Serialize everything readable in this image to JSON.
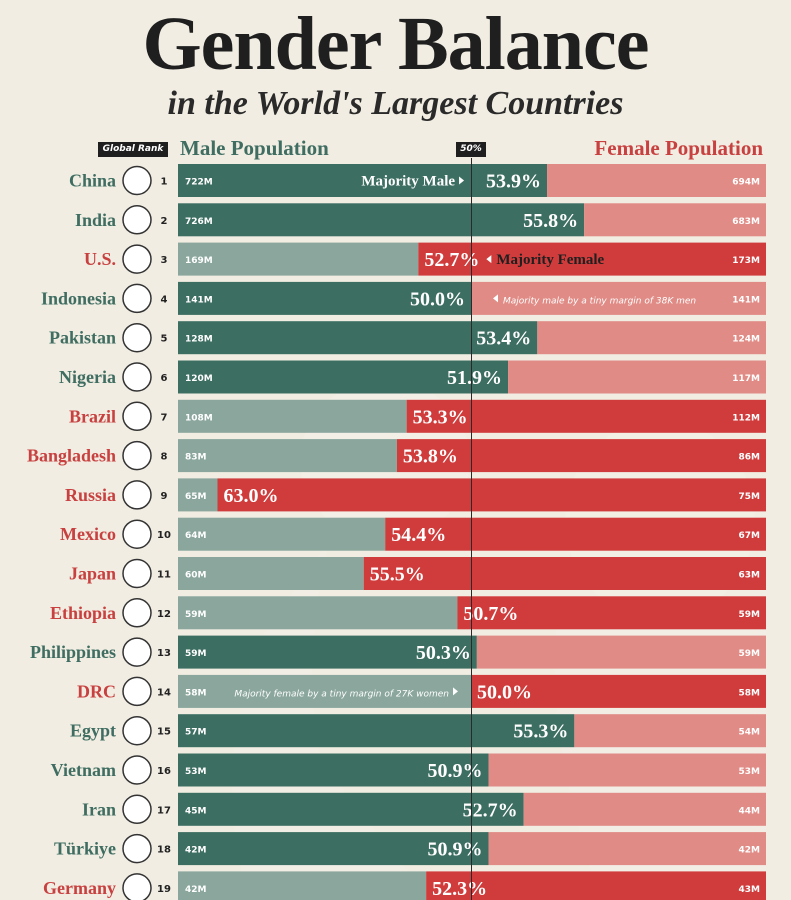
{
  "header": {
    "title": "Gender Balance",
    "subtitle": "in the World's Largest Countries",
    "rank_label": "Global Rank",
    "male_label": "Male Population",
    "female_label": "Female Population",
    "fifty_label": "50%"
  },
  "colors": {
    "male_majority_bar": "#3d6e62",
    "male_minority_bar": "#8aa69d",
    "female_majority_bar": "#d03c3c",
    "female_minority_bar": "#e08b85",
    "male_text": "#3f6d61",
    "female_text": "#c8403f"
  },
  "chart_data": {
    "type": "bar",
    "orientation": "horizontal-diverging",
    "categories": [
      "China",
      "India",
      "U.S.",
      "Indonesia",
      "Pakistan",
      "Nigeria",
      "Brazil",
      "Bangladesh",
      "Russia",
      "Mexico",
      "Japan",
      "Ethiopia",
      "Philippines",
      "DRC",
      "Egypt",
      "Vietnam",
      "Iran",
      "Türkiye",
      "Germany"
    ],
    "rank": [
      1,
      2,
      3,
      4,
      5,
      6,
      7,
      8,
      9,
      10,
      11,
      12,
      13,
      14,
      15,
      16,
      17,
      18,
      19
    ],
    "majority": [
      "male",
      "male",
      "female",
      "male",
      "male",
      "male",
      "female",
      "female",
      "female",
      "female",
      "female",
      "female",
      "male",
      "female",
      "male",
      "male",
      "male",
      "male",
      "female"
    ],
    "majority_share_pct": [
      53.9,
      55.8,
      52.7,
      50.0,
      53.4,
      51.9,
      53.3,
      53.8,
      63.0,
      54.4,
      55.5,
      50.7,
      50.3,
      50.0,
      55.3,
      50.9,
      52.7,
      50.9,
      52.3
    ],
    "majority_share_label": [
      "53.9%",
      "55.8%",
      "52.7%",
      "50.0%",
      "53.4%",
      "51.9%",
      "53.3%",
      "53.8%",
      "63.0%",
      "54.4%",
      "55.5%",
      "50.7%",
      "50.3%",
      "50.0%",
      "55.3%",
      "50.9%",
      "52.7%",
      "50.9%",
      "52.3%"
    ],
    "male_population": [
      "722M",
      "726M",
      "169M",
      "141M",
      "128M",
      "120M",
      "108M",
      "83M",
      "65M",
      "64M",
      "60M",
      "59M",
      "59M",
      "58M",
      "57M",
      "53M",
      "45M",
      "42M",
      "42M"
    ],
    "female_population": [
      "694M",
      "683M",
      "173M",
      "141M",
      "124M",
      "117M",
      "112M",
      "86M",
      "75M",
      "67M",
      "63M",
      "59M",
      "59M",
      "58M",
      "54M",
      "53M",
      "44M",
      "42M",
      "43M"
    ],
    "annotations": [
      {
        "row": 0,
        "text": "Majority Male",
        "side": "male"
      },
      {
        "row": 2,
        "text": "Majority Female",
        "side": "female"
      },
      {
        "row": 3,
        "text": "Majority male by a tiny margin of 38K men",
        "side": "female"
      },
      {
        "row": 13,
        "text": "Majority female by a tiny margin of 27K women",
        "side": "male"
      }
    ],
    "xlim": [
      0,
      100
    ],
    "center": 50
  }
}
